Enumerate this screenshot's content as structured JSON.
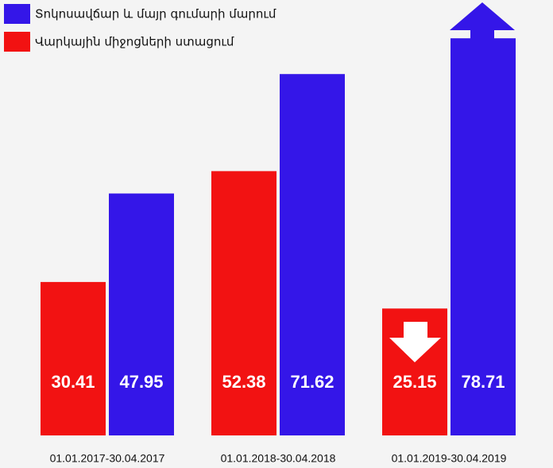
{
  "chart_data": {
    "type": "bar",
    "categories": [
      "01.01.2017-30.04.2017",
      "01.01.2018-30.04.2018",
      "01.01.2019-30.04.2019"
    ],
    "series": [
      {
        "name": "Վարկային միջոցների ստացում",
        "color": "#f21212",
        "values": [
          30.41,
          52.38,
          25.15
        ]
      },
      {
        "name": "Տոկոսավճար և մայր գումարի մարում",
        "color": "#3416e8",
        "values": [
          47.95,
          71.62,
          78.71
        ]
      }
    ],
    "ylim": [
      0,
      80
    ]
  }
}
